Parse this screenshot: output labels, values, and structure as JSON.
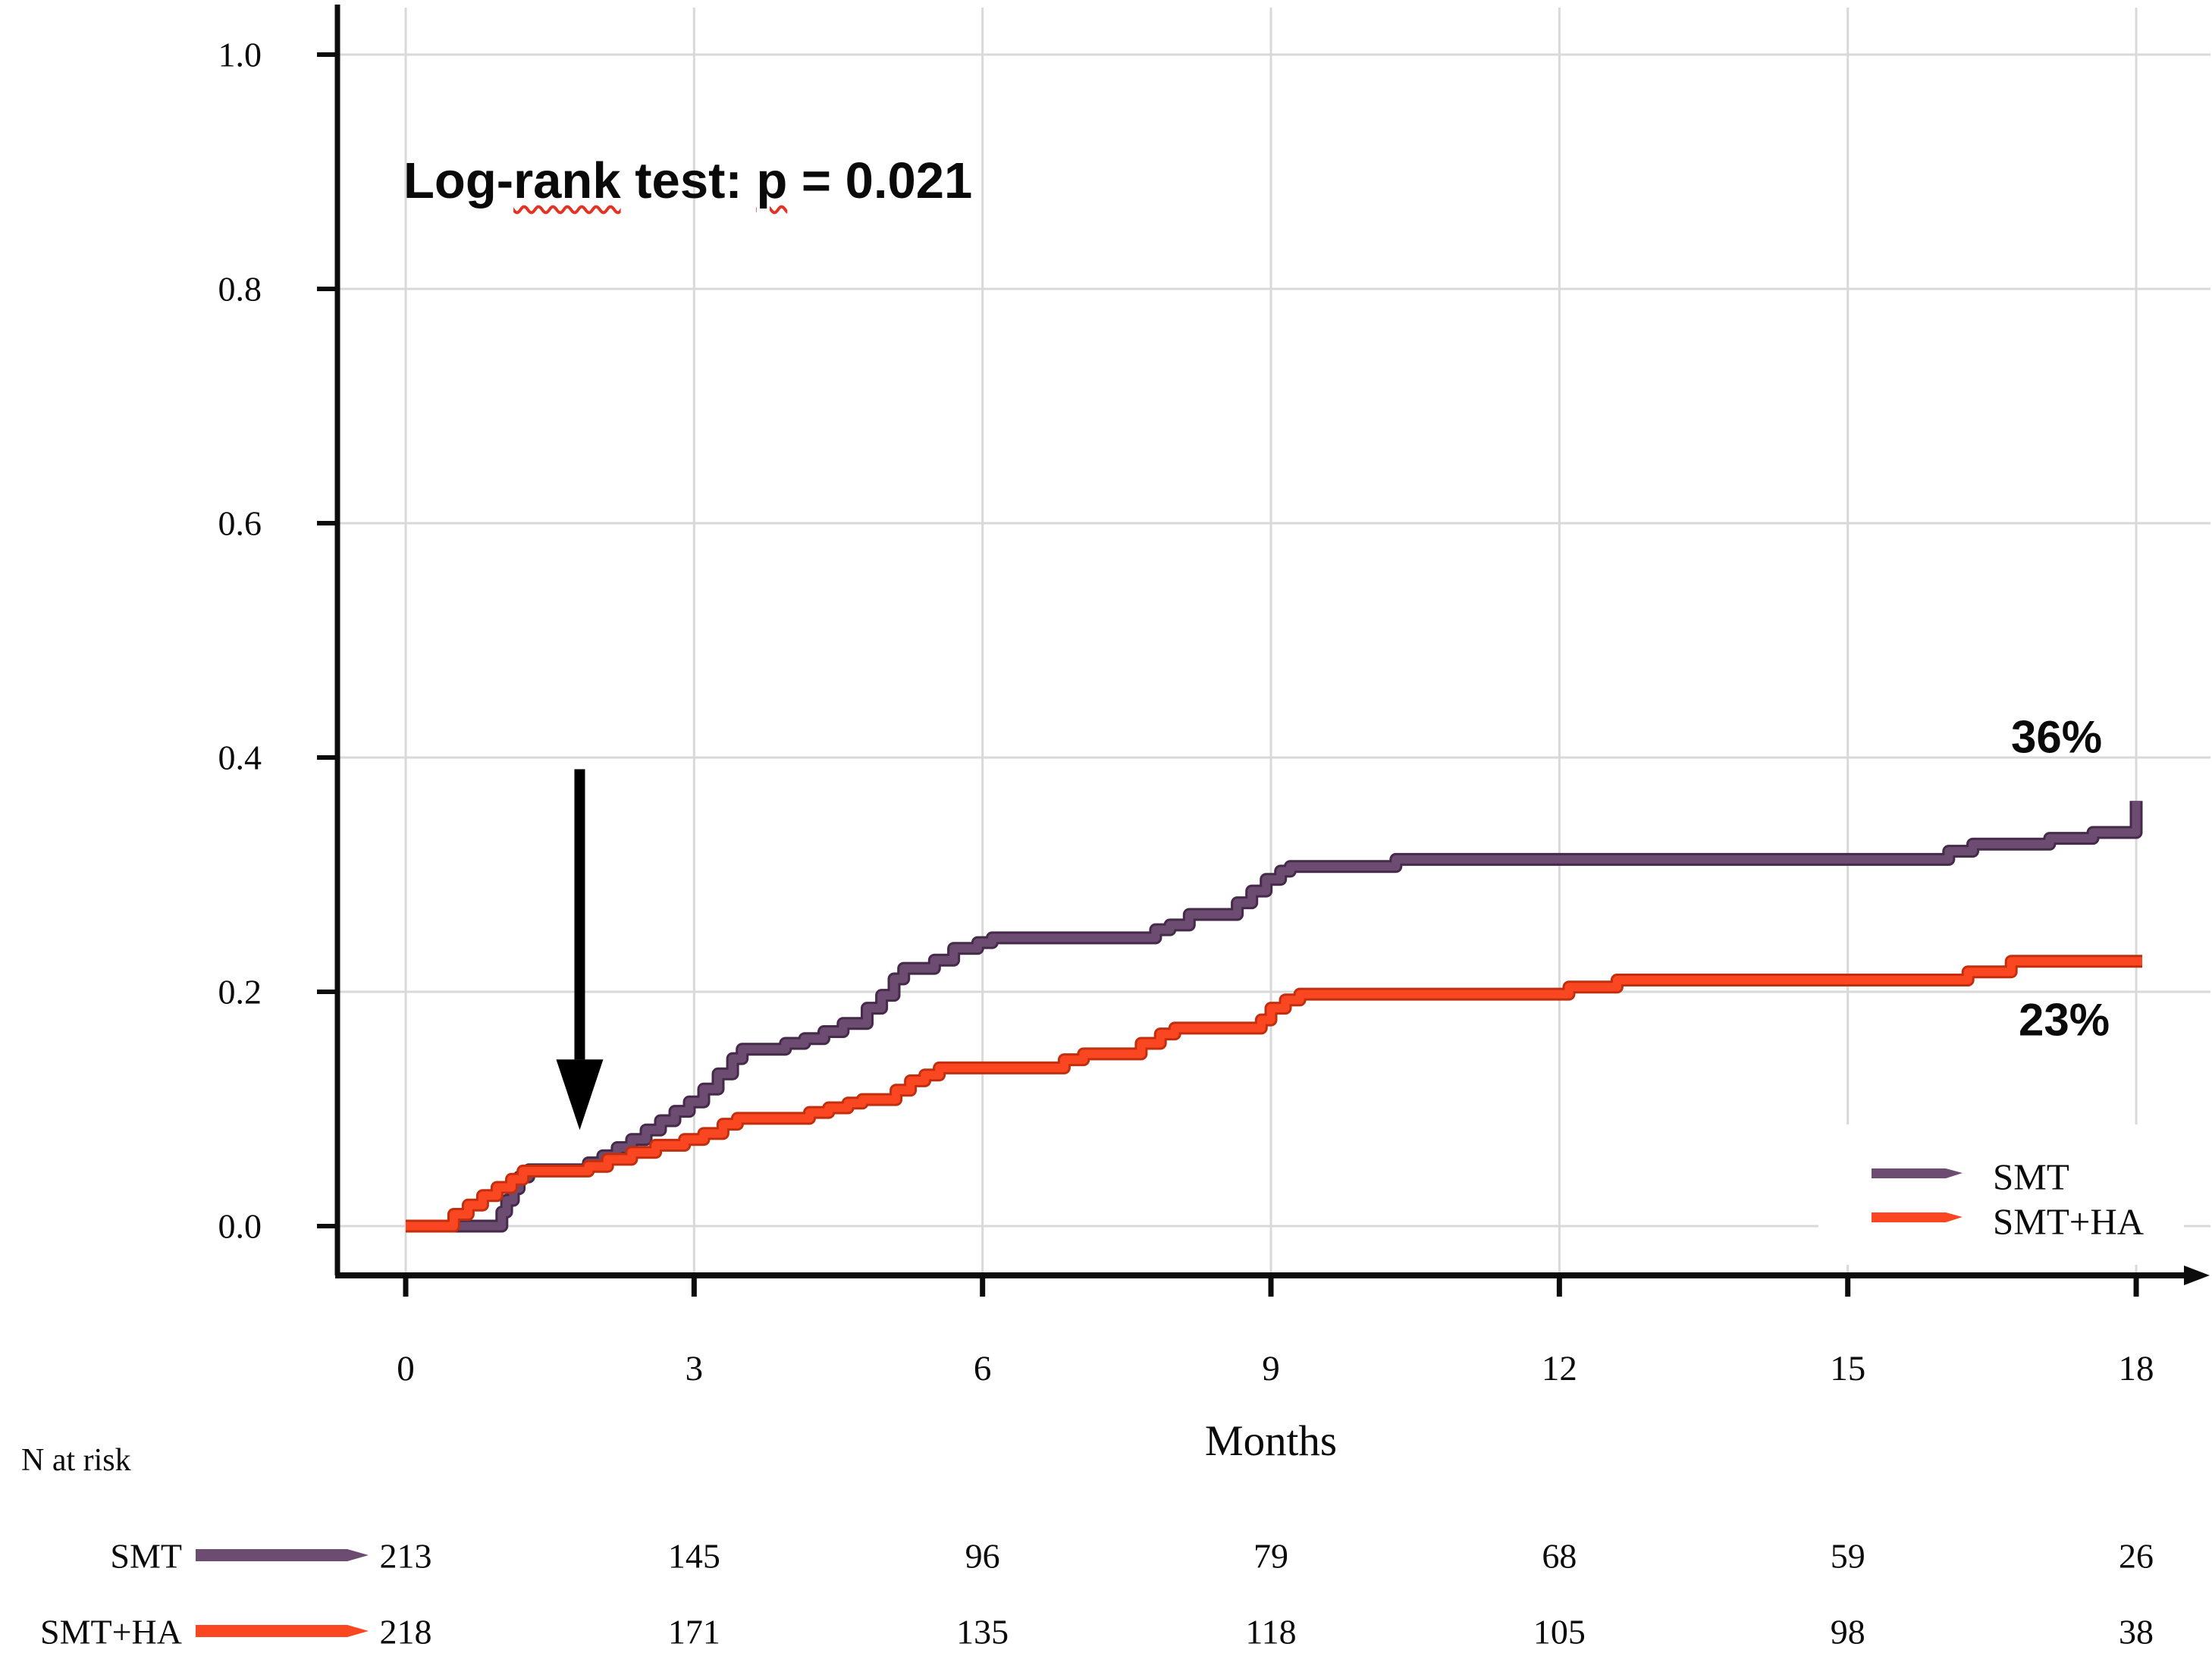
{
  "annotation": {
    "full_text": "Log-rank test: p = 0.021",
    "parts": {
      "pre": "Log-",
      "wavy1": "rank",
      "mid": " test: ",
      "wavy2": "p",
      "post": " = 0.021"
    }
  },
  "chart_data": {
    "type": "line",
    "subtype": "kaplan-meier-cumulative-incidence-step",
    "title": "",
    "xlabel": "Months",
    "ylabel": "",
    "xlim": [
      0,
      18
    ],
    "ylim": [
      0.0,
      1.0
    ],
    "grid": true,
    "grid_color": "#d9d9d9",
    "legend_position": "bottom-right",
    "x_ticks": [
      {
        "value": 0,
        "label": "0"
      },
      {
        "value": 3,
        "label": "3"
      },
      {
        "value": 6,
        "label": "6"
      },
      {
        "value": 9,
        "label": "9"
      },
      {
        "value": 12,
        "label": "12"
      },
      {
        "value": 15,
        "label": "15"
      },
      {
        "value": 18,
        "label": "18"
      }
    ],
    "y_ticks": [
      {
        "value": 0.0,
        "label": "0.0"
      },
      {
        "value": 0.2,
        "label": "0.2"
      },
      {
        "value": 0.4,
        "label": "0.4"
      },
      {
        "value": 0.6,
        "label": "0.6"
      },
      {
        "value": 0.8,
        "label": "0.8"
      },
      {
        "value": 1.0,
        "label": "1.0"
      }
    ],
    "series": [
      {
        "name": "SMT",
        "color": "#6d4c71",
        "edge_color": "#452a49",
        "end_label": "36%",
        "points": [
          [
            0,
            0
          ],
          [
            0.95,
            0
          ],
          [
            1.0,
            0.012
          ],
          [
            1.05,
            0.022
          ],
          [
            1.12,
            0.032
          ],
          [
            1.18,
            0.042
          ],
          [
            1.28,
            0.048
          ],
          [
            1.9,
            0.054
          ],
          [
            2.05,
            0.06
          ],
          [
            2.2,
            0.067
          ],
          [
            2.35,
            0.074
          ],
          [
            2.5,
            0.082
          ],
          [
            2.65,
            0.09
          ],
          [
            2.8,
            0.098
          ],
          [
            2.95,
            0.106
          ],
          [
            3.1,
            0.117
          ],
          [
            3.25,
            0.13
          ],
          [
            3.4,
            0.143
          ],
          [
            3.5,
            0.151
          ],
          [
            3.95,
            0.156
          ],
          [
            4.15,
            0.16
          ],
          [
            4.35,
            0.166
          ],
          [
            4.55,
            0.173
          ],
          [
            4.8,
            0.186
          ],
          [
            4.95,
            0.197
          ],
          [
            5.08,
            0.211
          ],
          [
            5.18,
            0.22
          ],
          [
            5.5,
            0.227
          ],
          [
            5.7,
            0.237
          ],
          [
            5.95,
            0.242
          ],
          [
            6.1,
            0.246
          ],
          [
            7.8,
            0.253
          ],
          [
            7.95,
            0.257
          ],
          [
            8.15,
            0.266
          ],
          [
            8.65,
            0.276
          ],
          [
            8.8,
            0.286
          ],
          [
            8.95,
            0.296
          ],
          [
            9.1,
            0.303
          ],
          [
            9.2,
            0.307
          ],
          [
            10.3,
            0.313
          ],
          [
            16.05,
            0.32
          ],
          [
            16.3,
            0.326
          ],
          [
            17.1,
            0.331
          ],
          [
            17.55,
            0.336
          ],
          [
            18,
            0.363
          ]
        ]
      },
      {
        "name": "SMT+HA",
        "color": "#fa4722",
        "edge_color": "#c22f0e",
        "end_label": "23%",
        "points": [
          [
            0,
            0
          ],
          [
            0.42,
            0
          ],
          [
            0.5,
            0.01
          ],
          [
            0.65,
            0.018
          ],
          [
            0.8,
            0.026
          ],
          [
            0.95,
            0.033
          ],
          [
            1.1,
            0.04
          ],
          [
            1.22,
            0.047
          ],
          [
            1.9,
            0.051
          ],
          [
            2.1,
            0.057
          ],
          [
            2.35,
            0.063
          ],
          [
            2.6,
            0.069
          ],
          [
            2.9,
            0.074
          ],
          [
            3.1,
            0.079
          ],
          [
            3.3,
            0.087
          ],
          [
            3.45,
            0.092
          ],
          [
            4.2,
            0.097
          ],
          [
            4.4,
            0.101
          ],
          [
            4.6,
            0.105
          ],
          [
            4.75,
            0.108
          ],
          [
            5.1,
            0.116
          ],
          [
            5.25,
            0.124
          ],
          [
            5.4,
            0.129
          ],
          [
            5.55,
            0.135
          ],
          [
            6.85,
            0.142
          ],
          [
            7.05,
            0.147
          ],
          [
            7.65,
            0.156
          ],
          [
            7.85,
            0.164
          ],
          [
            8.0,
            0.169
          ],
          [
            8.9,
            0.176
          ],
          [
            9.0,
            0.186
          ],
          [
            9.15,
            0.193
          ],
          [
            9.3,
            0.198
          ],
          [
            12.1,
            0.204
          ],
          [
            12.6,
            0.21
          ],
          [
            16.25,
            0.217
          ],
          [
            16.7,
            0.226
          ],
          [
            18,
            0.226
          ]
        ]
      }
    ],
    "annotations": {
      "log_rank": "Log-rank test: p = 0.021",
      "p_value": "0.021",
      "arrow": {
        "x_month": 1.81,
        "from_value": 0.39,
        "to_value": 0.082
      }
    }
  },
  "legend": {
    "items": [
      {
        "label": "SMT",
        "color": "#6d4c71"
      },
      {
        "label": "SMT+HA",
        "color": "#fa4722"
      }
    ]
  },
  "risk_table": {
    "title": "N at risk",
    "rows": [
      {
        "label": "SMT",
        "color": "#6d4c71",
        "values": [
          "213",
          "145",
          "96",
          "79",
          "68",
          "59",
          "26"
        ]
      },
      {
        "label": "SMT+HA",
        "color": "#fa4722",
        "values": [
          "218",
          "171",
          "135",
          "118",
          "105",
          "98",
          "38"
        ]
      }
    ]
  },
  "labels": {
    "months": "Months"
  },
  "colors": {
    "axis": "#0c0c0c",
    "grid": "#d9d9d9",
    "arrow": "#000000",
    "background": "#ffffff"
  }
}
